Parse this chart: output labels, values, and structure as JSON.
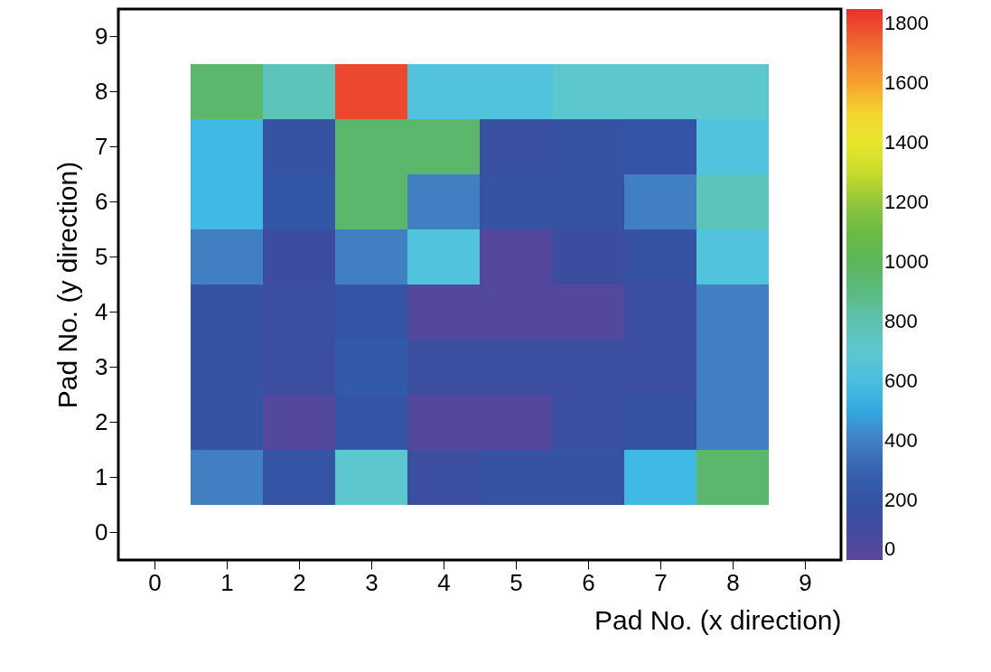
{
  "chart_data": {
    "type": "heatmap",
    "xlabel": "Pad No. (x direction)",
    "ylabel": "Pad No. (y direction)",
    "x": [
      1,
      2,
      3,
      4,
      5,
      6,
      7,
      8
    ],
    "y_categories": [
      "9",
      "8",
      "7",
      "6",
      "5",
      "4",
      "3",
      "2",
      "1",
      "0"
    ],
    "cells": [
      [
        null,
        null,
        null,
        null,
        null,
        null,
        null,
        null
      ],
      [
        950,
        770,
        1800,
        630,
        630,
        700,
        700,
        700
      ],
      [
        570,
        200,
        950,
        950,
        170,
        200,
        230,
        630
      ],
      [
        570,
        250,
        950,
        400,
        200,
        200,
        400,
        770
      ],
      [
        400,
        130,
        400,
        630,
        30,
        130,
        200,
        630
      ],
      [
        200,
        150,
        230,
        30,
        30,
        30,
        150,
        400
      ],
      [
        200,
        150,
        270,
        150,
        150,
        150,
        150,
        400
      ],
      [
        200,
        30,
        230,
        30,
        30,
        150,
        200,
        400
      ],
      [
        400,
        230,
        700,
        150,
        200,
        200,
        570,
        950
      ],
      [
        null,
        null,
        null,
        null,
        null,
        null,
        null,
        null
      ]
    ],
    "xlim": [
      -0.5,
      9.5
    ],
    "xticks": [
      0,
      1,
      2,
      3,
      4,
      5,
      6,
      7,
      8,
      9
    ],
    "clim": [
      0,
      1850
    ],
    "cticks": [
      0,
      200,
      400,
      600,
      800,
      1000,
      1200,
      1400,
      1600,
      1800
    ],
    "grid": false
  }
}
